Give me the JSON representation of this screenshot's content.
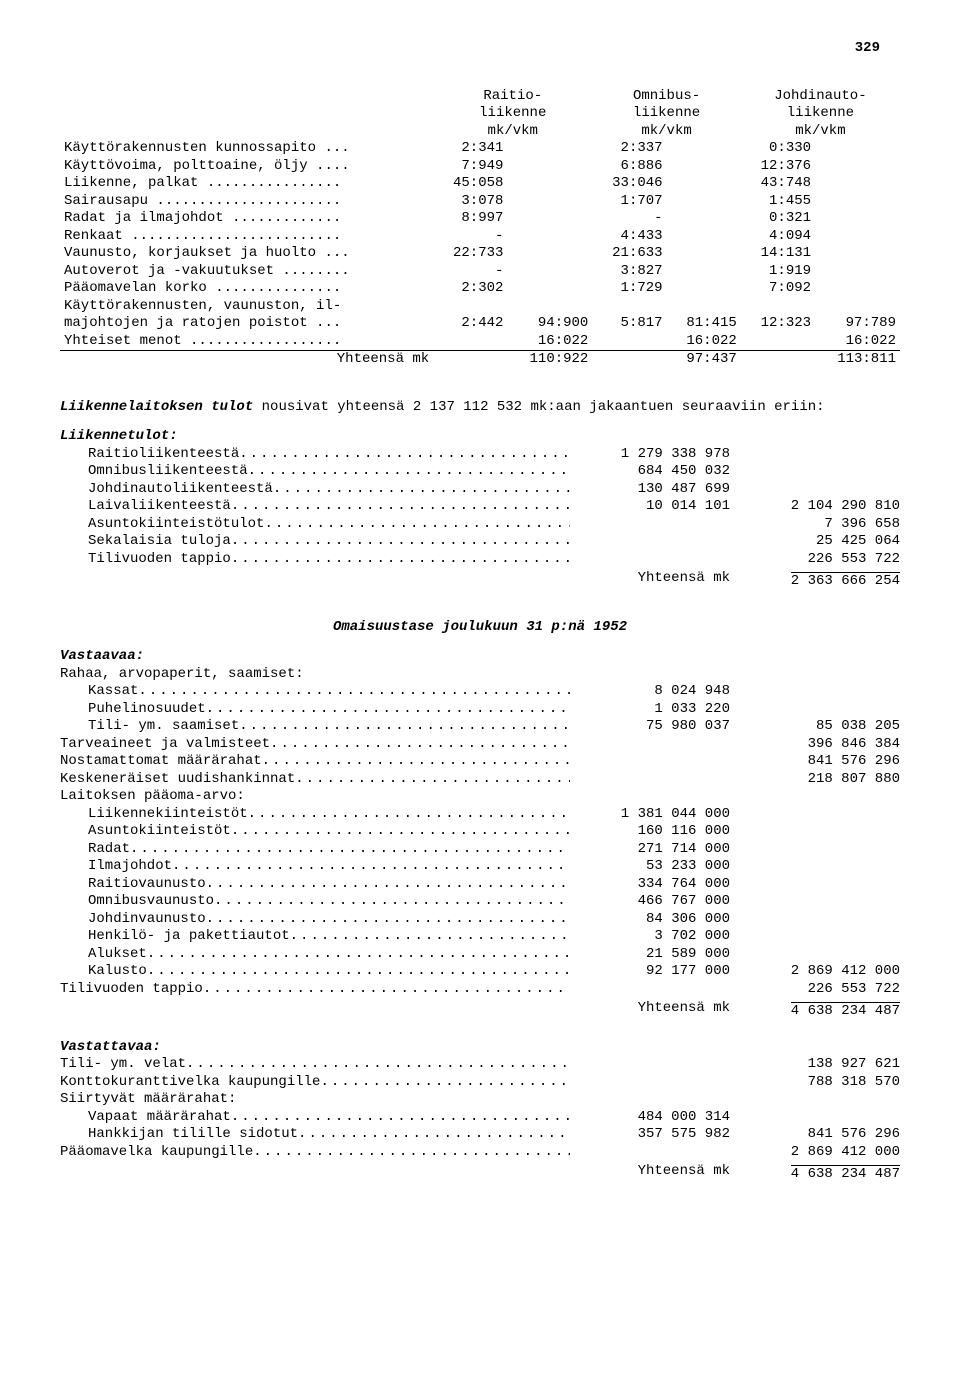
{
  "page_number": "329",
  "top_table": {
    "headers": [
      [
        "Raitio-",
        "liikenne",
        "mk/vkm"
      ],
      [
        "Omnibus-",
        "liikenne",
        "mk/vkm"
      ],
      [
        "Johdinauto-",
        "liikenne",
        "mk/vkm"
      ]
    ],
    "rows": [
      {
        "label": "Käyttörakennusten kunnossapito ...",
        "c1": "2:341",
        "c3": "2:337",
        "c5": "0:330"
      },
      {
        "label": "Käyttövoima, polttoaine, öljy ....",
        "c1": "7:949",
        "c3": "6:886",
        "c5": "12:376"
      },
      {
        "label": "Liikenne, palkat ................",
        "c1": "45:058",
        "c3": "33:046",
        "c5": "43:748"
      },
      {
        "label": "Sairausapu ......................",
        "c1": "3:078",
        "c3": "1:707",
        "c5": "1:455"
      },
      {
        "label": "Radat ja ilmajohdot .............",
        "c1": "8:997",
        "c3": "-",
        "c5": "0:321"
      },
      {
        "label": "Renkaat .........................",
        "c1": "-",
        "c3": "4:433",
        "c5": "4:094"
      },
      {
        "label": "Vaunusto, korjaukset ja huolto ...",
        "c1": "22:733",
        "c3": "21:633",
        "c5": "14:131"
      },
      {
        "label": "Autoverot ja -vakuutukset ........",
        "c1": "-",
        "c3": "3:827",
        "c5": "1:919"
      },
      {
        "label": "Pääomavelan korko ...............",
        "c1": "2:302",
        "c3": "1:729",
        "c5": "7:092"
      },
      {
        "label": "Käyttörakennusten, vaunuston, il-",
        "c1": "",
        "c3": "",
        "c5": ""
      },
      {
        "label": "  majohtojen ja ratojen poistot ...",
        "c1": "2:442",
        "c2": "94:900",
        "c3": "5:817",
        "c4": "81:415",
        "c5": "12:323",
        "c6": "97:789"
      },
      {
        "label": "Yhteiset menot ..................",
        "c1": "",
        "c2": "16:022",
        "c3": "",
        "c4": "16:022",
        "c5": "",
        "c6": "16:022"
      }
    ],
    "total_label": "Yhteensä mk",
    "totals": {
      "c2": "110:922",
      "c4": "97:437",
      "c6": "113:811"
    }
  },
  "para1_pre": "Liikennelaitoksen tulot",
  "para1_rest": " nousivat yhteensä 2 137 112 532 mk:aan jakaantuen seuraaviin eriin:",
  "liikennetulot_head": "Liikennetulot:",
  "liikennetulot": [
    {
      "label": "Raitioliikenteestä",
      "v1": "1 279 338 978",
      "v2": ""
    },
    {
      "label": "Omnibusliikenteestä",
      "v1": "684 450 032",
      "v2": ""
    },
    {
      "label": "Johdinautoliikenteestä",
      "v1": "130 487 699",
      "v2": ""
    },
    {
      "label": "Laivaliikenteestä",
      "v1": "10 014 101",
      "v2": "2 104 290 810"
    },
    {
      "label": "Asuntokiinteistötulot",
      "v1": "",
      "v2": "7 396 658"
    },
    {
      "label": "Sekalaisia tuloja",
      "v1": "",
      "v2": "25 425 064"
    },
    {
      "label": "Tilivuoden tappio",
      "v1": "",
      "v2": "226 553 722"
    }
  ],
  "liikennetulot_total_label": "Yhteensä mk",
  "liikennetulot_total": "2 363 666 254",
  "balance_title": "Omaisuustase joulukuun 31 p:nä 1952",
  "vastaavaa_head": "Vastaavaa:",
  "vast_sec1": "Rahaa, arvopaperit, saamiset:",
  "vast_rows1": [
    {
      "label": "Kassat",
      "v1": "8 024 948",
      "v2": "",
      "indent": true
    },
    {
      "label": "Puhelinosuudet",
      "v1": "1 033 220",
      "v2": "",
      "indent": true
    },
    {
      "label": "Tili- ym. saamiset",
      "v1": "75 980 037",
      "v2": "85 038 205",
      "indent": true
    },
    {
      "label": "Tarveaineet ja valmisteet",
      "v1": "",
      "v2": "396 846 384",
      "indent": false
    },
    {
      "label": "Nostamattomat määrärahat",
      "v1": "",
      "v2": "841 576 296",
      "indent": false
    },
    {
      "label": "Keskeneräiset uudishankinnat",
      "v1": "",
      "v2": "218 807 880",
      "indent": false
    }
  ],
  "vast_sec2": "Laitoksen pääoma-arvo:",
  "vast_rows2": [
    {
      "label": "Liikennekiinteistöt",
      "v1": "1 381 044 000",
      "v2": "",
      "indent": true
    },
    {
      "label": "Asuntokiinteistöt",
      "v1": "160 116 000",
      "v2": "",
      "indent": true
    },
    {
      "label": "Radat",
      "v1": "271 714 000",
      "v2": "",
      "indent": true
    },
    {
      "label": "Ilmajohdot",
      "v1": "53 233 000",
      "v2": "",
      "indent": true
    },
    {
      "label": "Raitiovaunusto",
      "v1": "334 764 000",
      "v2": "",
      "indent": true
    },
    {
      "label": "Omnibusvaunusto",
      "v1": "466 767 000",
      "v2": "",
      "indent": true
    },
    {
      "label": "Johdinvaunusto",
      "v1": "84 306 000",
      "v2": "",
      "indent": true
    },
    {
      "label": "Henkilö- ja pakettiautot",
      "v1": "3 702 000",
      "v2": "",
      "indent": true
    },
    {
      "label": "Alukset",
      "v1": "21 589 000",
      "v2": "",
      "indent": true
    },
    {
      "label": "Kalusto",
      "v1": "92 177 000",
      "v2": "2 869 412 000",
      "indent": true
    },
    {
      "label": "Tilivuoden tappio",
      "v1": "",
      "v2": "226 553 722",
      "indent": false
    }
  ],
  "vast_total_label": "Yhteensä mk",
  "vast_total": "4 638 234 487",
  "vastattavaa_head": "Vastattavaa:",
  "vst_rows1": [
    {
      "label": "Tili- ym. velat",
      "v1": "",
      "v2": "138 927 621",
      "indent": false
    },
    {
      "label": "Konttokuranttivelka kaupungille",
      "v1": "",
      "v2": "788 318 570",
      "indent": false
    }
  ],
  "vst_sec": "Siirtyvät määrärahat:",
  "vst_rows2": [
    {
      "label": "Vapaat määrärahat",
      "v1": "484 000 314",
      "v2": "",
      "indent": true
    },
    {
      "label": "Hankkijan tilille sidotut",
      "v1": "357 575 982",
      "v2": "841 576 296",
      "indent": true
    },
    {
      "label": "Pääomavelka kaupungille",
      "v1": "",
      "v2": "2 869 412 000",
      "indent": false
    }
  ],
  "vst_total_label": "Yhteensä mk",
  "vst_total": "4 638 234 487",
  "dots": "..........................................................."
}
